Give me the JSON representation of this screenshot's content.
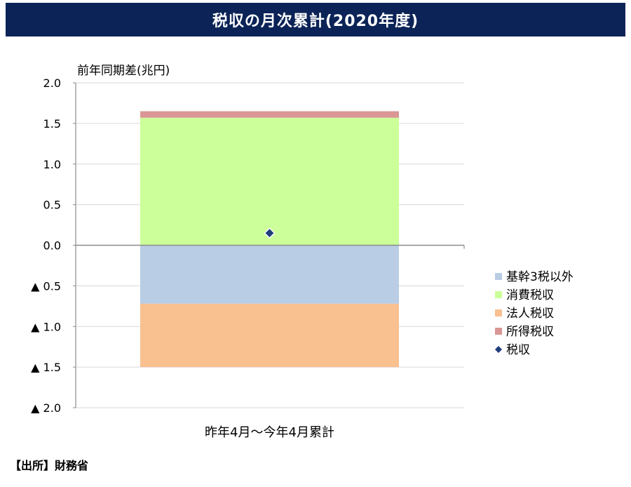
{
  "title": "税収の月次累計(2020年度)",
  "source": "【出所】財務省",
  "chart_data": {
    "type": "bar",
    "stacked": true,
    "ylabel": "前年同期差(兆円)",
    "ylim": [
      -2.0,
      2.0
    ],
    "yticks": [
      2.0,
      1.5,
      1.0,
      0.5,
      0.0,
      -0.5,
      -1.0,
      -1.5,
      -2.0
    ],
    "ytick_labels": [
      "2.0",
      "1.5",
      "1.0",
      "0.5",
      "0.0",
      "▲ 0.5",
      "▲ 1.0",
      "▲ 1.5",
      "▲ 2.0"
    ],
    "categories": [
      "昨年4月～今年4月累計"
    ],
    "grid": true,
    "legend": "right",
    "series": [
      {
        "name": "基幹3税以外",
        "kind": "bar",
        "values": [
          -0.72
        ],
        "color": "#b9cde5"
      },
      {
        "name": "消費税収",
        "kind": "bar",
        "values": [
          1.57
        ],
        "color": "#ccff99"
      },
      {
        "name": "法人税収",
        "kind": "bar",
        "values": [
          -0.78
        ],
        "color": "#f9c090"
      },
      {
        "name": "所得税収",
        "kind": "bar",
        "values": [
          0.08
        ],
        "color": "#d99694"
      },
      {
        "name": "税収",
        "kind": "marker",
        "values": [
          0.15
        ],
        "color": "#1f3f7a"
      }
    ]
  }
}
